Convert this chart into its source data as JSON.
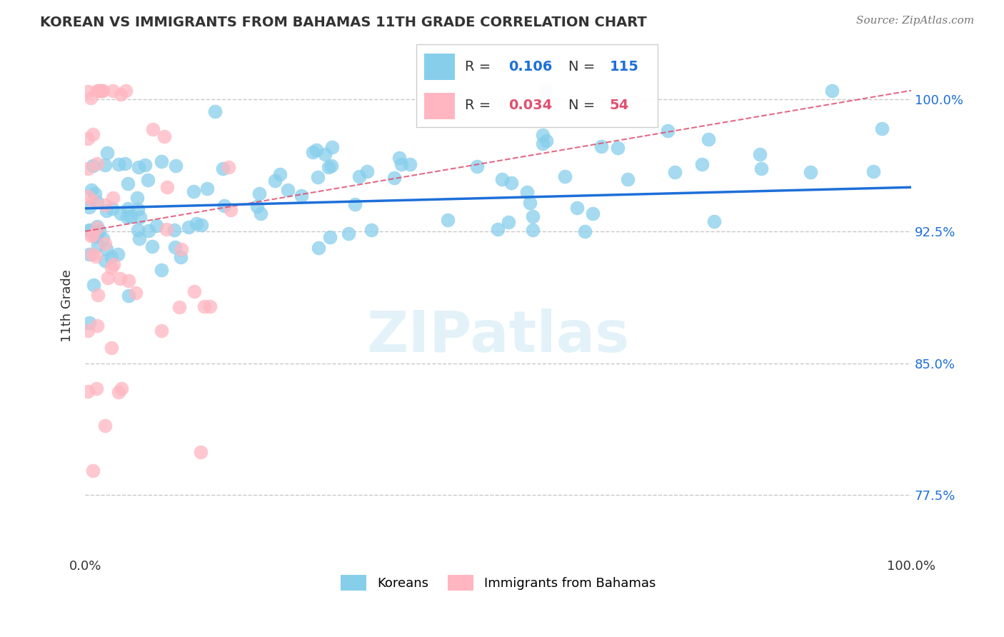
{
  "title": "KOREAN VS IMMIGRANTS FROM BAHAMAS 11TH GRADE CORRELATION CHART",
  "source": "Source: ZipAtlas.com",
  "ylabel": "11th Grade",
  "xlim": [
    0.0,
    1.0
  ],
  "ylim": [
    0.74,
    1.025
  ],
  "yticks": [
    0.775,
    0.85,
    0.925,
    1.0
  ],
  "ytick_labels": [
    "77.5%",
    "85.0%",
    "92.5%",
    "100.0%"
  ],
  "xticks": [
    0.0,
    0.5,
    1.0
  ],
  "xtick_labels": [
    "0.0%",
    "",
    "100.0%"
  ],
  "korean_R": 0.106,
  "korean_N": 115,
  "bahamas_R": 0.034,
  "bahamas_N": 54,
  "korean_color": "#87CEEB",
  "bahamas_color": "#FFB6C1",
  "korean_line_color": "#1E6FD9",
  "bahamas_line_color": "#E05070",
  "background_color": "#FFFFFF",
  "korean_trend_start": 0.938,
  "korean_trend_end": 0.95,
  "bahamas_trend_start": 0.925,
  "bahamas_trend_end": 1.005
}
